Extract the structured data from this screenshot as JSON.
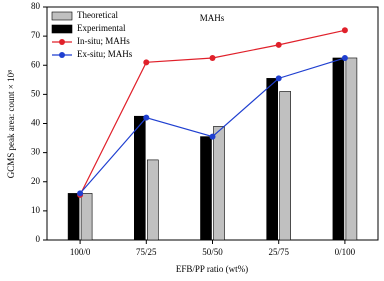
{
  "chart_data": {
    "type": "bar",
    "annotation": "MAHs",
    "x_label": "EFB/PP ratio (wt%)",
    "y_label": "GCMS peak area: count × 10⁸",
    "categories": [
      "100/0",
      "75/25",
      "50/50",
      "25/75",
      "0/100"
    ],
    "series": [
      {
        "name": "Theoretical",
        "type": "bar",
        "color": "#c0c0c0",
        "values": [
          16,
          27.5,
          39,
          51,
          62.5
        ]
      },
      {
        "name": "Experimental",
        "type": "bar",
        "color": "#000000",
        "values": [
          16,
          42.5,
          35.5,
          55.5,
          62.5
        ]
      },
      {
        "name": "In-situ; MAHs",
        "type": "line",
        "color": "#e0202a",
        "values": [
          15.5,
          61,
          62.5,
          67,
          72
        ]
      },
      {
        "name": "Ex-situ; MAHs",
        "type": "line",
        "color": "#1f3fd0",
        "values": [
          16,
          42,
          35.5,
          55.5,
          62.5
        ]
      }
    ],
    "ylim": [
      0,
      80
    ],
    "yticks": [
      0,
      10,
      20,
      30,
      40,
      50,
      60,
      70,
      80
    ],
    "legend": "upper left"
  }
}
